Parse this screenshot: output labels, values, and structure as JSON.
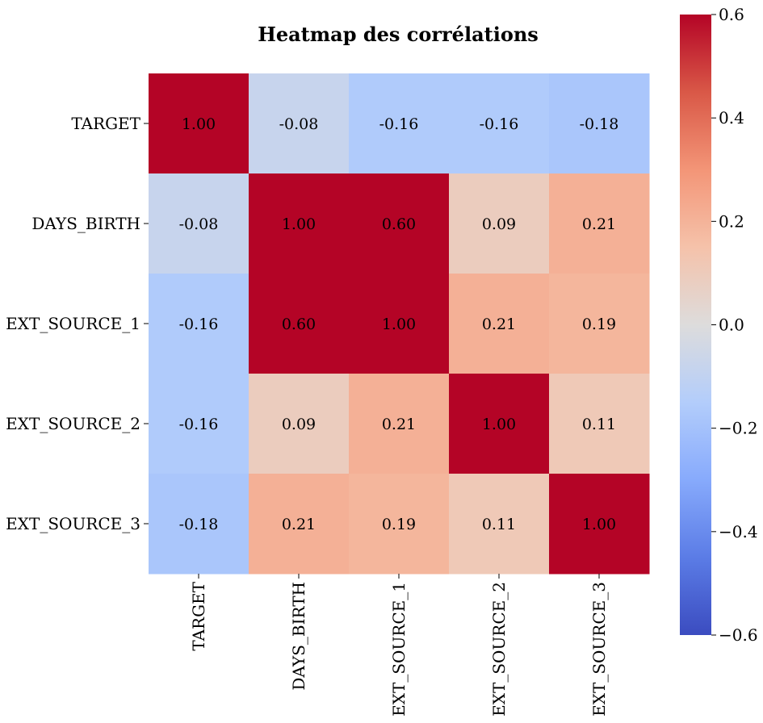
{
  "chart_data": {
    "type": "heatmap",
    "title": "Heatmap des corrélations",
    "rows": [
      "TARGET",
      "DAYS_BIRTH",
      "EXT_SOURCE_1",
      "EXT_SOURCE_2",
      "EXT_SOURCE_3"
    ],
    "columns": [
      "TARGET",
      "DAYS_BIRTH",
      "EXT_SOURCE_1",
      "EXT_SOURCE_2",
      "EXT_SOURCE_3"
    ],
    "values": [
      [
        1.0,
        -0.08,
        -0.16,
        -0.16,
        -0.18
      ],
      [
        -0.08,
        1.0,
        0.6,
        0.09,
        0.21
      ],
      [
        -0.16,
        0.6,
        1.0,
        0.21,
        0.19
      ],
      [
        -0.16,
        0.09,
        0.21,
        1.0,
        0.11
      ],
      [
        -0.18,
        0.21,
        0.19,
        0.11,
        1.0
      ]
    ],
    "value_format": "2 decimals",
    "colormap": "coolwarm",
    "colorbar": {
      "range": [
        -0.6,
        0.6
      ],
      "ticks": [
        0.6,
        0.4,
        0.2,
        0.0,
        -0.2,
        -0.4,
        -0.6
      ],
      "tick_labels": [
        "0.6",
        "0.4",
        "0.2",
        "0.0",
        "−0.2",
        "−0.4",
        "−0.6"
      ],
      "placement": "right"
    },
    "xlabel": "",
    "ylabel": "",
    "x_tick_rotation": "vertical",
    "grid": false
  }
}
